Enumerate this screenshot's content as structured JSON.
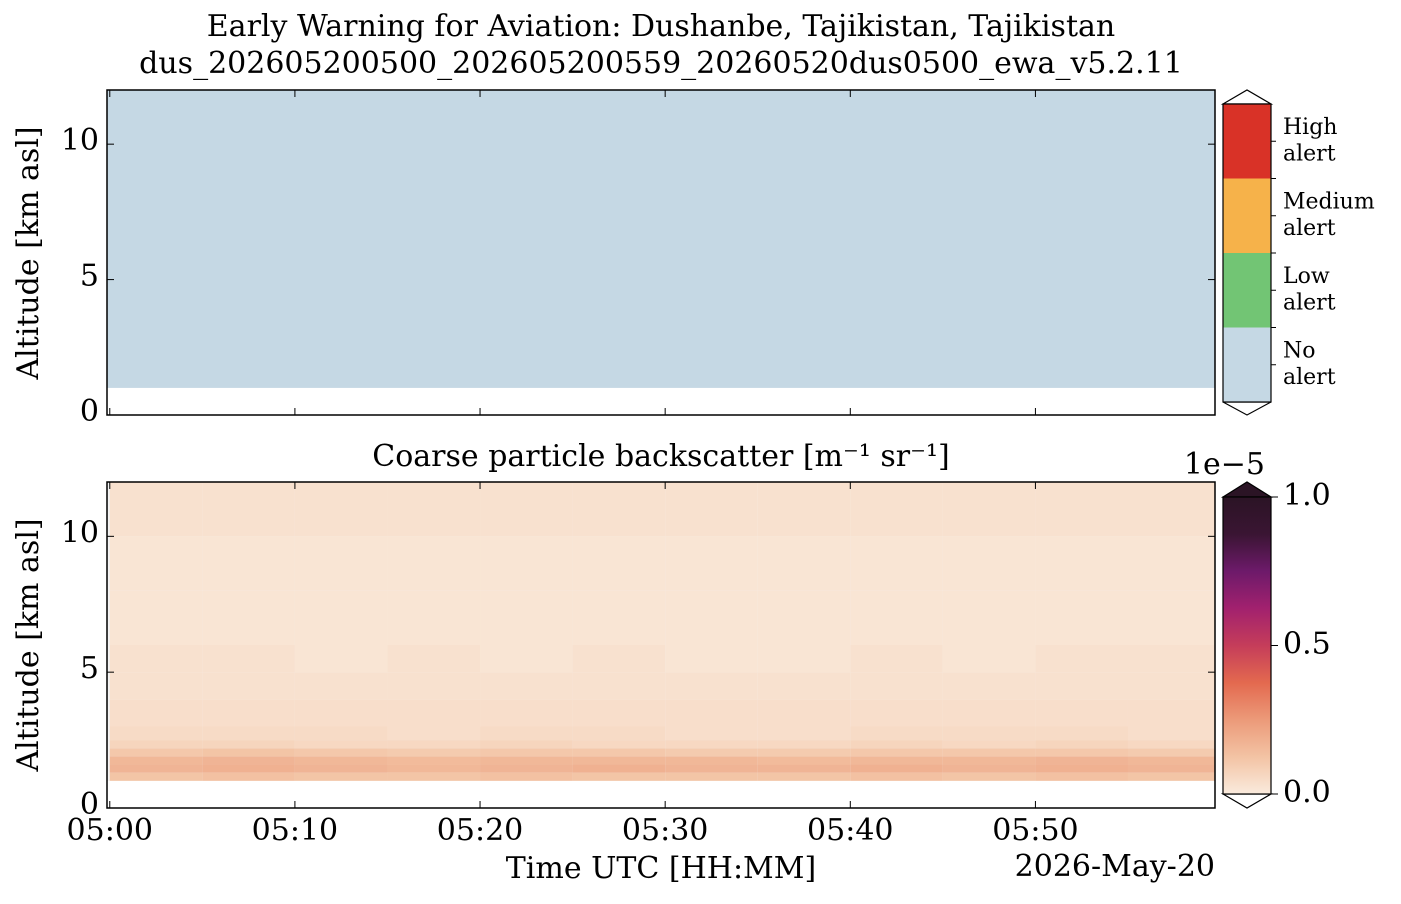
{
  "chart_data": [
    {
      "type": "alert-map",
      "title": "Early Warning for Aviation: Dushanbe, Tajikistan, Tajikistan",
      "subtitle": "dus_202605200500_202605200559_20260520dus0500_ewa_v5.2.11",
      "y_label": "Altitude [km asl]",
      "ylim": [
        0,
        12
      ],
      "yticks": [
        0,
        5,
        10
      ],
      "x_edges": [
        -0.15,
        59.7
      ],
      "y_edges": [
        1.0,
        12
      ],
      "z": [
        [
          0
        ]
      ],
      "levels": [
        {
          "value": 0,
          "label": "No\nalert",
          "color": "#c5d8e4"
        },
        {
          "value": 1,
          "label": "Low\nalert",
          "color": "#72c574"
        },
        {
          "value": 2,
          "label": "Medium\nalert",
          "color": "#f6b24a"
        },
        {
          "value": 3,
          "label": "High\nalert",
          "color": "#d93227"
        }
      ]
    },
    {
      "type": "heatmap",
      "title": "Coarse particle backscatter [m⁻¹ sr⁻¹]",
      "x_label": "Time UTC [HH:MM]",
      "date_label": "2026-May-20",
      "y_label": "Altitude [km asl]",
      "xlim": [
        -0.15,
        59.7
      ],
      "xticks": [
        {
          "value": 0,
          "label": "05:00"
        },
        {
          "value": 10,
          "label": "05:10"
        },
        {
          "value": 20,
          "label": "05:20"
        },
        {
          "value": 30,
          "label": "05:30"
        },
        {
          "value": 40,
          "label": "05:40"
        },
        {
          "value": 50,
          "label": "05:50"
        }
      ],
      "ylim": [
        0,
        12
      ],
      "yticks": [
        0,
        5,
        10
      ],
      "background": "#f4f4f4",
      "x_edges": [
        0,
        5,
        10,
        15,
        20,
        25,
        30,
        35,
        40,
        45,
        50,
        55,
        59.7
      ],
      "y_edges": [
        1.0,
        1.3,
        1.6,
        1.9,
        2.2,
        2.5,
        3,
        4,
        5,
        6,
        8,
        10,
        12
      ],
      "z": [
        [
          0.12,
          0.13,
          0.12,
          0.12,
          0.13,
          0.12,
          0.12,
          0.12,
          0.13,
          0.12,
          0.13,
          0.12
        ],
        [
          0.17,
          0.18,
          0.17,
          0.16,
          0.17,
          0.18,
          0.17,
          0.17,
          0.18,
          0.17,
          0.18,
          0.17
        ],
        [
          0.16,
          0.17,
          0.16,
          0.15,
          0.16,
          0.16,
          0.16,
          0.15,
          0.16,
          0.16,
          0.17,
          0.16
        ],
        [
          0.11,
          0.12,
          0.11,
          0.1,
          0.11,
          0.11,
          0.1,
          0.1,
          0.11,
          0.11,
          0.11,
          0.1
        ],
        [
          0.07,
          0.07,
          0.06,
          0.06,
          0.07,
          0.06,
          0.06,
          0.06,
          0.07,
          0.06,
          0.07,
          0.06
        ],
        [
          0.05,
          0.05,
          0.05,
          0.04,
          0.05,
          0.05,
          0.04,
          0.04,
          0.05,
          0.05,
          0.05,
          0.04
        ],
        [
          0.04,
          0.04,
          0.04,
          0.04,
          0.04,
          0.04,
          0.04,
          0.04,
          0.04,
          0.04,
          0.04,
          0.04
        ],
        [
          0.03,
          0.03,
          0.03,
          0.03,
          0.03,
          0.03,
          0.03,
          0.03,
          0.03,
          0.03,
          0.03,
          0.03
        ],
        [
          0.03,
          0.03,
          0.02,
          0.03,
          0.02,
          0.03,
          0.02,
          0.02,
          0.03,
          0.02,
          0.03,
          0.03
        ],
        [
          0.02,
          0.02,
          0.02,
          0.02,
          0.02,
          0.02,
          0.02,
          0.02,
          0.02,
          0.02,
          0.02,
          0.02
        ],
        [
          0.02,
          0.02,
          0.02,
          0.02,
          0.02,
          0.02,
          0.02,
          0.02,
          0.02,
          0.02,
          0.02,
          0.02
        ],
        [
          0.03,
          0.03,
          0.03,
          0.03,
          0.03,
          0.03,
          0.03,
          0.03,
          0.03,
          0.03,
          0.03,
          0.03
        ]
      ],
      "clim": [
        0,
        1
      ],
      "cticks": [
        {
          "value": 0,
          "label": "0.0"
        },
        {
          "value": 0.5,
          "label": "0.5"
        },
        {
          "value": 1,
          "label": "1.0"
        }
      ],
      "offset_label": "1e−5",
      "colormap": [
        "#faebdd",
        "#f3c3a4",
        "#ec9a79",
        "#e3694f",
        "#c53d5a",
        "#a2216e",
        "#6d1a6a",
        "#3a1533",
        "#2b1425"
      ]
    }
  ]
}
